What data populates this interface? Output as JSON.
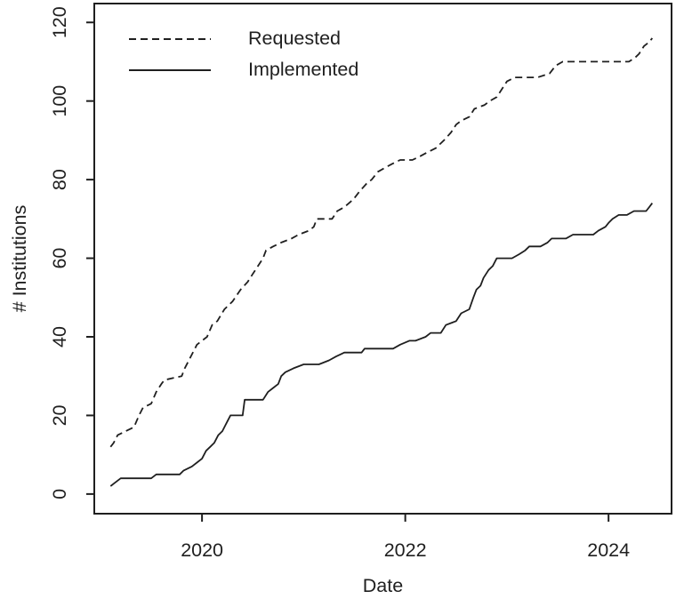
{
  "background": "#ffffff",
  "chart_data": {
    "type": "line",
    "title": "",
    "xlabel": "Date",
    "ylabel": "# Institutions",
    "xlim": [
      2018.94,
      2024.62
    ],
    "ylim": [
      -5,
      124.8
    ],
    "x_ticks": [
      2020,
      2022,
      2024
    ],
    "y_ticks": [
      0,
      20,
      40,
      60,
      80,
      100,
      120
    ],
    "grid": false,
    "legend_position": "top-left",
    "axis_color": "#1f1f1f",
    "series": [
      {
        "name": "Requested",
        "line_style": "dashed",
        "color": "#1f1f1f",
        "points": [
          [
            2019.1,
            12
          ],
          [
            2019.13,
            13
          ],
          [
            2019.17,
            15
          ],
          [
            2019.25,
            16
          ],
          [
            2019.33,
            17
          ],
          [
            2019.38,
            20
          ],
          [
            2019.42,
            22
          ],
          [
            2019.5,
            23
          ],
          [
            2019.55,
            26
          ],
          [
            2019.6,
            28
          ],
          [
            2019.63,
            29
          ],
          [
            2019.8,
            30
          ],
          [
            2019.83,
            32
          ],
          [
            2019.87,
            34
          ],
          [
            2019.95,
            38
          ],
          [
            2020.0,
            39
          ],
          [
            2020.05,
            40
          ],
          [
            2020.1,
            43
          ],
          [
            2020.15,
            44
          ],
          [
            2020.22,
            47
          ],
          [
            2020.3,
            49
          ],
          [
            2020.38,
            52
          ],
          [
            2020.45,
            54
          ],
          [
            2020.5,
            56
          ],
          [
            2020.55,
            58
          ],
          [
            2020.6,
            60
          ],
          [
            2020.63,
            62
          ],
          [
            2020.7,
            63
          ],
          [
            2020.78,
            64
          ],
          [
            2020.88,
            65
          ],
          [
            2020.95,
            66
          ],
          [
            2021.05,
            67
          ],
          [
            2021.1,
            68
          ],
          [
            2021.13,
            70
          ],
          [
            2021.28,
            70
          ],
          [
            2021.33,
            72
          ],
          [
            2021.4,
            73
          ],
          [
            2021.49,
            75
          ],
          [
            2021.55,
            77
          ],
          [
            2021.62,
            79
          ],
          [
            2021.67,
            80
          ],
          [
            2021.73,
            82
          ],
          [
            2021.8,
            83
          ],
          [
            2021.87,
            84
          ],
          [
            2021.95,
            85
          ],
          [
            2022.07,
            85
          ],
          [
            2022.15,
            86
          ],
          [
            2022.22,
            87
          ],
          [
            2022.3,
            88
          ],
          [
            2022.38,
            90
          ],
          [
            2022.45,
            92
          ],
          [
            2022.5,
            94
          ],
          [
            2022.55,
            95
          ],
          [
            2022.63,
            96
          ],
          [
            2022.68,
            98
          ],
          [
            2022.78,
            99
          ],
          [
            2022.83,
            100
          ],
          [
            2022.9,
            101
          ],
          [
            2022.95,
            103
          ],
          [
            2023.0,
            105
          ],
          [
            2023.08,
            106
          ],
          [
            2023.3,
            106
          ],
          [
            2023.42,
            107
          ],
          [
            2023.48,
            109
          ],
          [
            2023.55,
            110
          ],
          [
            2024.2,
            110
          ],
          [
            2024.26,
            111
          ],
          [
            2024.3,
            112
          ],
          [
            2024.35,
            114
          ],
          [
            2024.4,
            115
          ],
          [
            2024.43,
            116
          ]
        ]
      },
      {
        "name": "Implemented",
        "line_style": "solid",
        "color": "#1f1f1f",
        "points": [
          [
            2019.1,
            2
          ],
          [
            2019.15,
            3
          ],
          [
            2019.2,
            4
          ],
          [
            2019.5,
            4
          ],
          [
            2019.55,
            5
          ],
          [
            2019.78,
            5
          ],
          [
            2019.82,
            6
          ],
          [
            2019.9,
            7
          ],
          [
            2019.95,
            8
          ],
          [
            2020.0,
            9
          ],
          [
            2020.04,
            11
          ],
          [
            2020.08,
            12
          ],
          [
            2020.12,
            13
          ],
          [
            2020.16,
            15
          ],
          [
            2020.2,
            16
          ],
          [
            2020.24,
            18
          ],
          [
            2020.28,
            20
          ],
          [
            2020.4,
            20
          ],
          [
            2020.42,
            24
          ],
          [
            2020.6,
            24
          ],
          [
            2020.65,
            26
          ],
          [
            2020.7,
            27
          ],
          [
            2020.75,
            28
          ],
          [
            2020.78,
            30
          ],
          [
            2020.82,
            31
          ],
          [
            2020.9,
            32
          ],
          [
            2021.0,
            33
          ],
          [
            2021.15,
            33
          ],
          [
            2021.25,
            34
          ],
          [
            2021.32,
            35
          ],
          [
            2021.4,
            36
          ],
          [
            2021.57,
            36
          ],
          [
            2021.6,
            37
          ],
          [
            2021.88,
            37
          ],
          [
            2021.95,
            38
          ],
          [
            2022.04,
            39
          ],
          [
            2022.1,
            39
          ],
          [
            2022.2,
            40
          ],
          [
            2022.25,
            41
          ],
          [
            2022.35,
            41
          ],
          [
            2022.4,
            43
          ],
          [
            2022.5,
            44
          ],
          [
            2022.55,
            46
          ],
          [
            2022.63,
            47
          ],
          [
            2022.67,
            50
          ],
          [
            2022.7,
            52
          ],
          [
            2022.74,
            53
          ],
          [
            2022.77,
            55
          ],
          [
            2022.82,
            57
          ],
          [
            2022.86,
            58
          ],
          [
            2022.9,
            60
          ],
          [
            2023.05,
            60
          ],
          [
            2023.12,
            61
          ],
          [
            2023.18,
            62
          ],
          [
            2023.22,
            63
          ],
          [
            2023.33,
            63
          ],
          [
            2023.4,
            64
          ],
          [
            2023.44,
            65
          ],
          [
            2023.58,
            65
          ],
          [
            2023.65,
            66
          ],
          [
            2023.85,
            66
          ],
          [
            2023.9,
            67
          ],
          [
            2023.97,
            68
          ],
          [
            2024.0,
            69
          ],
          [
            2024.04,
            70
          ],
          [
            2024.1,
            71
          ],
          [
            2024.18,
            71
          ],
          [
            2024.25,
            72
          ],
          [
            2024.37,
            72
          ],
          [
            2024.4,
            73
          ],
          [
            2024.43,
            74
          ]
        ]
      }
    ]
  }
}
